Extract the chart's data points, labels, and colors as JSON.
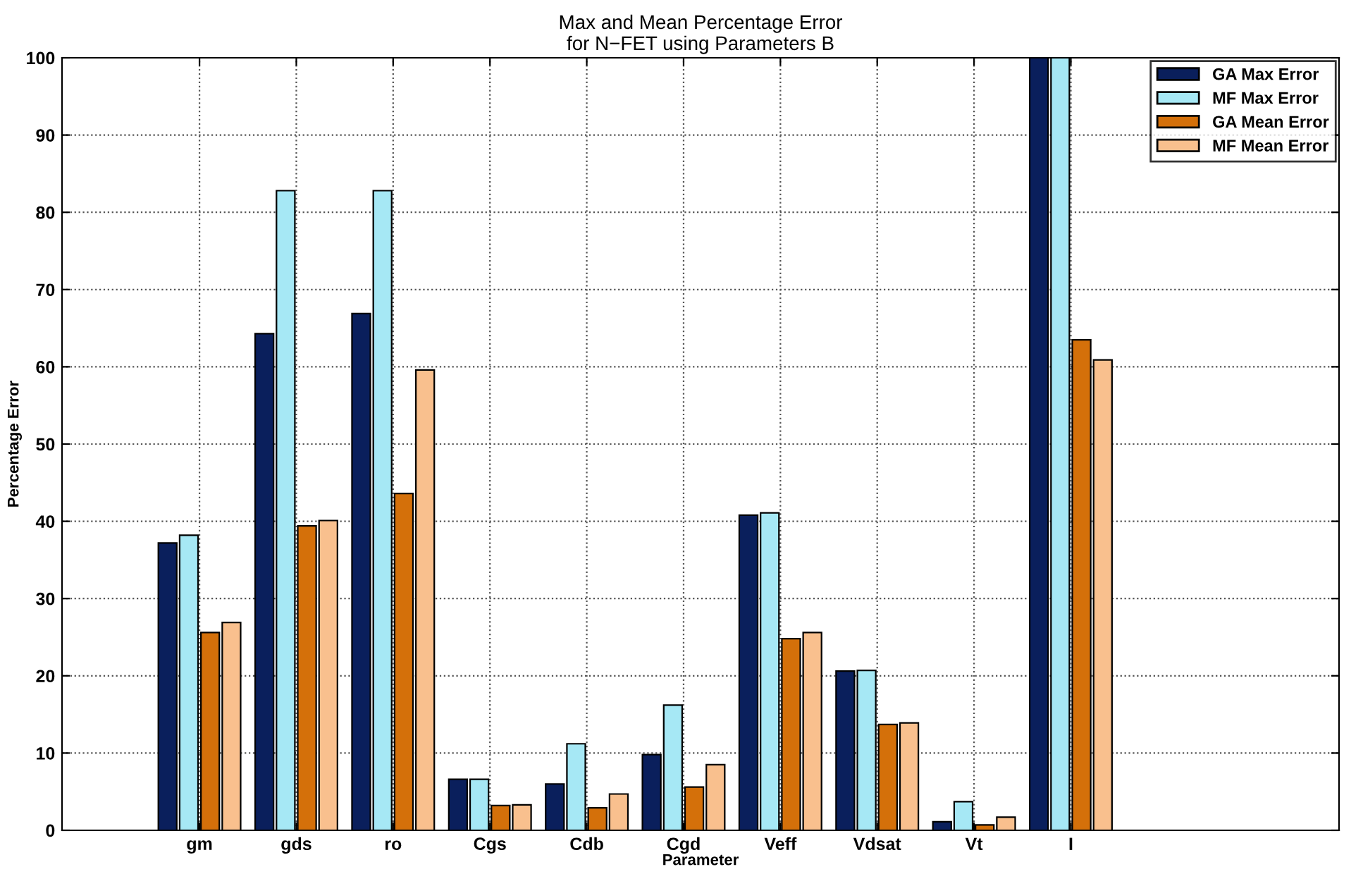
{
  "chart_data": {
    "type": "bar",
    "title": "Max and Mean Percentage Error\nfor N−FET using Parameters B",
    "xlabel": "Parameter",
    "ylabel": "Percentage Error",
    "categories": [
      "gm",
      "gds",
      "ro",
      "Cgs",
      "Cdb",
      "Cgd",
      "Veff",
      "Vdsat",
      "Vt",
      "I"
    ],
    "series": [
      {
        "name": "GA Max Error",
        "color": "#0a1f5c",
        "values": [
          37.2,
          64.3,
          66.9,
          6.6,
          6.0,
          9.8,
          40.8,
          20.6,
          1.1,
          100
        ]
      },
      {
        "name": "MF Max Error",
        "color": "#a6e8f5",
        "values": [
          38.2,
          82.8,
          82.8,
          6.6,
          11.2,
          16.2,
          41.1,
          20.7,
          3.7,
          100
        ]
      },
      {
        "name": "GA Mean Error",
        "color": "#d4700a",
        "values": [
          25.6,
          39.4,
          43.6,
          3.2,
          2.9,
          5.6,
          24.8,
          13.7,
          0.7,
          63.5
        ]
      },
      {
        "name": "MF Mean Error",
        "color": "#f9c08e",
        "values": [
          26.9,
          40.1,
          59.6,
          3.3,
          4.7,
          8.5,
          25.6,
          13.9,
          1.7,
          60.9
        ]
      }
    ],
    "ylim": [
      0,
      100
    ],
    "yticks": [
      0,
      10,
      20,
      30,
      40,
      50,
      60,
      70,
      80,
      90,
      100
    ],
    "grid": true,
    "legend": "top right"
  }
}
